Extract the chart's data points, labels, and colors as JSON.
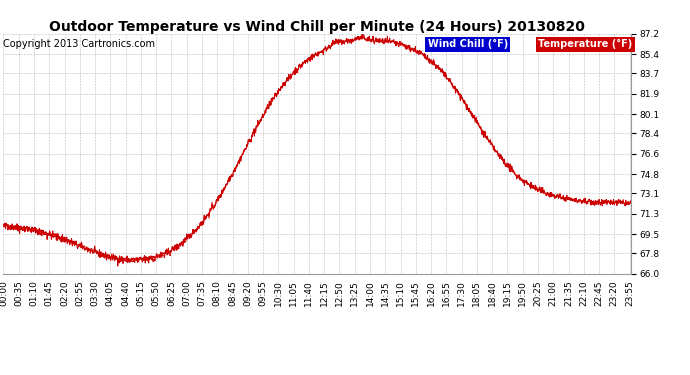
{
  "title": "Outdoor Temperature vs Wind Chill per Minute (24 Hours) 20130820",
  "copyright": "Copyright 2013 Cartronics.com",
  "legend_wind_chill": "Wind Chill (°F)",
  "legend_temperature": "Temperature (°F)",
  "ylim": [
    66.0,
    87.2
  ],
  "yticks": [
    66.0,
    67.8,
    69.5,
    71.3,
    73.1,
    74.8,
    76.6,
    78.4,
    80.1,
    81.9,
    83.7,
    85.4,
    87.2
  ],
  "line_color": "#cc0000",
  "bg_color": "#ffffff",
  "grid_color": "#bbbbbb",
  "plot_bg_color": "#ffffff",
  "title_fontsize": 10,
  "tick_fontsize": 6.5,
  "copyright_fontsize": 7,
  "legend_wind_chill_bg": "#0000cc",
  "legend_temperature_bg": "#cc0000",
  "num_points": 1440,
  "tick_interval_minutes": 35
}
